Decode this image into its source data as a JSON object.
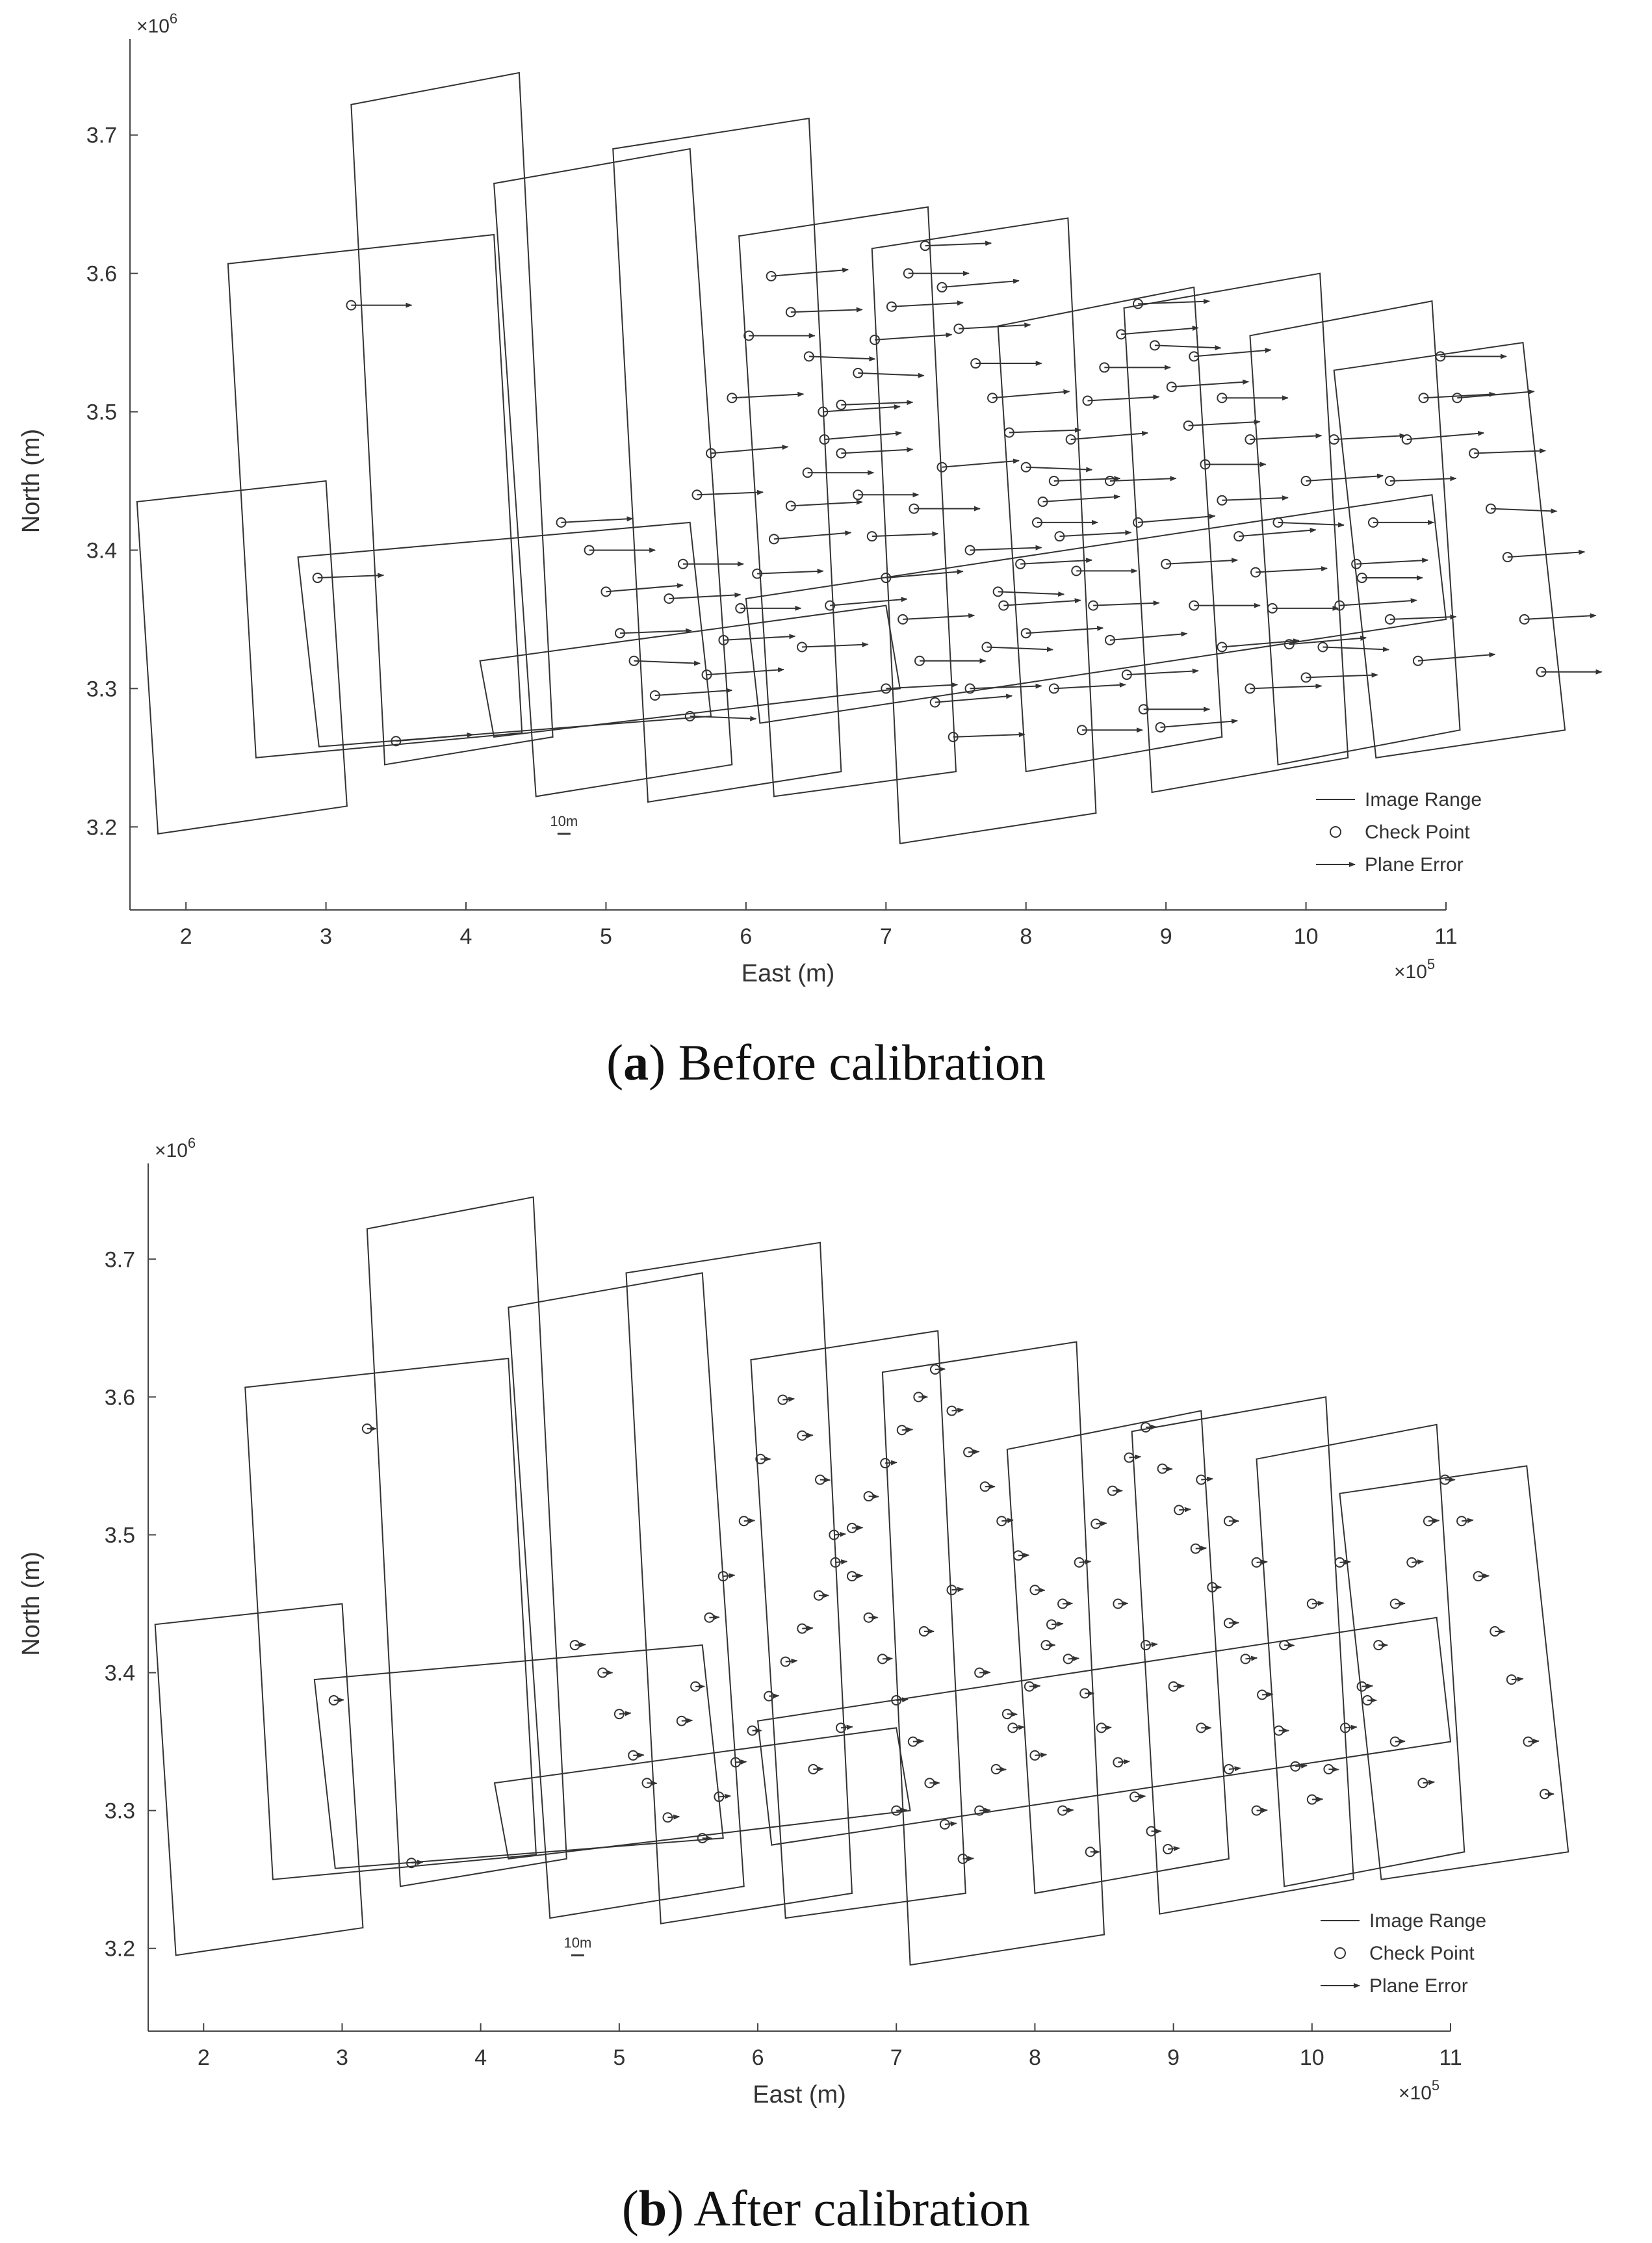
{
  "chart_data": [
    {
      "type": "scatter",
      "xlabel": "East (m)",
      "ylabel": "North (m)",
      "x_exponent_label": "×10",
      "x_exponent": "5",
      "y_exponent_label": "×10",
      "y_exponent": "6",
      "xlim": [
        160000,
        1100000
      ],
      "ylim": [
        3140000,
        3760000
      ],
      "xticks": [
        {
          "v": 200000,
          "label": "2"
        },
        {
          "v": 300000,
          "label": "3"
        },
        {
          "v": 400000,
          "label": "4"
        },
        {
          "v": 500000,
          "label": "5"
        },
        {
          "v": 600000,
          "label": "6"
        },
        {
          "v": 700000,
          "label": "7"
        },
        {
          "v": 800000,
          "label": "8"
        },
        {
          "v": 900000,
          "label": "9"
        },
        {
          "v": 1000000,
          "label": "10"
        },
        {
          "v": 1100000,
          "label": "11"
        }
      ],
      "yticks": [
        {
          "v": 3200000,
          "label": "3.2"
        },
        {
          "v": 3300000,
          "label": "3.3"
        },
        {
          "v": 3400000,
          "label": "3.4"
        },
        {
          "v": 3500000,
          "label": "3.5"
        },
        {
          "v": 3600000,
          "label": "3.6"
        },
        {
          "v": 3700000,
          "label": "3.7"
        }
      ],
      "legend": {
        "position": "bottom-right",
        "entries": [
          "Image Range",
          "Check Point",
          "Plane Error"
        ]
      },
      "scale_label": "10m",
      "error_scale": 1.0,
      "caption_letter": "a",
      "caption_text": ") Before calibration",
      "caption_open": "("
    },
    {
      "type": "scatter",
      "xlabel": "East (m)",
      "ylabel": "North (m)",
      "x_exponent_label": "×10",
      "x_exponent": "5",
      "y_exponent_label": "×10",
      "y_exponent": "6",
      "xlim": [
        160000,
        1100000
      ],
      "ylim": [
        3140000,
        3760000
      ],
      "xticks": [
        {
          "v": 200000,
          "label": "2"
        },
        {
          "v": 300000,
          "label": "3"
        },
        {
          "v": 400000,
          "label": "4"
        },
        {
          "v": 500000,
          "label": "5"
        },
        {
          "v": 600000,
          "label": "6"
        },
        {
          "v": 700000,
          "label": "7"
        },
        {
          "v": 800000,
          "label": "8"
        },
        {
          "v": 900000,
          "label": "9"
        },
        {
          "v": 1000000,
          "label": "10"
        },
        {
          "v": 1100000,
          "label": "11"
        }
      ],
      "yticks": [
        {
          "v": 3200000,
          "label": "3.2"
        },
        {
          "v": 3300000,
          "label": "3.3"
        },
        {
          "v": 3400000,
          "label": "3.4"
        },
        {
          "v": 3500000,
          "label": "3.5"
        },
        {
          "v": 3600000,
          "label": "3.6"
        },
        {
          "v": 3700000,
          "label": "3.7"
        }
      ],
      "legend": {
        "position": "bottom-right",
        "entries": [
          "Image Range",
          "Check Point",
          "Plane Error"
        ]
      },
      "scale_label": "10m",
      "error_scale": 0.15,
      "caption_letter": "b",
      "caption_text": ") After calibration",
      "caption_open": "("
    }
  ],
  "image_ranges": [
    {
      "corners": [
        [
          318000,
          3722000
        ],
        [
          438000,
          3745000
        ],
        [
          462000,
          3265000
        ],
        [
          342000,
          3245000
        ]
      ]
    },
    {
      "corners": [
        [
          230000,
          3607000
        ],
        [
          420000,
          3628000
        ],
        [
          440000,
          3268000
        ],
        [
          250000,
          3250000
        ]
      ]
    },
    {
      "corners": [
        [
          165000,
          3435000
        ],
        [
          300000,
          3450000
        ],
        [
          315000,
          3215000
        ],
        [
          180000,
          3195000
        ]
      ]
    },
    {
      "corners": [
        [
          280000,
          3395000
        ],
        [
          560000,
          3420000
        ],
        [
          575000,
          3280000
        ],
        [
          295000,
          3258000
        ]
      ]
    },
    {
      "corners": [
        [
          420000,
          3665000
        ],
        [
          560000,
          3690000
        ],
        [
          590000,
          3245000
        ],
        [
          450000,
          3222000
        ]
      ]
    },
    {
      "corners": [
        [
          505000,
          3690000
        ],
        [
          645000,
          3712000
        ],
        [
          668000,
          3240000
        ],
        [
          530000,
          3218000
        ]
      ]
    },
    {
      "corners": [
        [
          595000,
          3627000
        ],
        [
          730000,
          3648000
        ],
        [
          750000,
          3240000
        ],
        [
          620000,
          3222000
        ]
      ]
    },
    {
      "corners": [
        [
          690000,
          3618000
        ],
        [
          830000,
          3640000
        ],
        [
          850000,
          3210000
        ],
        [
          710000,
          3188000
        ]
      ]
    },
    {
      "corners": [
        [
          780000,
          3562000
        ],
        [
          920000,
          3590000
        ],
        [
          940000,
          3265000
        ],
        [
          800000,
          3240000
        ]
      ]
    },
    {
      "corners": [
        [
          870000,
          3575000
        ],
        [
          1010000,
          3600000
        ],
        [
          1030000,
          3250000
        ],
        [
          890000,
          3225000
        ]
      ]
    },
    {
      "corners": [
        [
          960000,
          3555000
        ],
        [
          1090000,
          3580000
        ],
        [
          1110000,
          3270000
        ],
        [
          980000,
          3245000
        ]
      ]
    },
    {
      "corners": [
        [
          1020000,
          3530000
        ],
        [
          1155000,
          3550000
        ],
        [
          1185000,
          3270000
        ],
        [
          1050000,
          3250000
        ]
      ]
    },
    {
      "corners": [
        [
          410000,
          3320000
        ],
        [
          700000,
          3360000
        ],
        [
          710000,
          3300000
        ],
        [
          420000,
          3265000
        ]
      ]
    },
    {
      "corners": [
        [
          600000,
          3365000
        ],
        [
          1090000,
          3440000
        ],
        [
          1100000,
          3350000
        ],
        [
          610000,
          3275000
        ]
      ]
    }
  ],
  "check_points": [
    [
      318000,
      3577000
    ],
    [
      294000,
      3380000
    ],
    [
      350000,
      3262000
    ],
    [
      468000,
      3420000
    ],
    [
      488000,
      3400000
    ],
    [
      500000,
      3370000
    ],
    [
      510000,
      3340000
    ],
    [
      520000,
      3320000
    ],
    [
      535000,
      3295000
    ],
    [
      545000,
      3365000
    ],
    [
      555000,
      3390000
    ],
    [
      565000,
      3440000
    ],
    [
      575000,
      3470000
    ],
    [
      590000,
      3510000
    ],
    [
      602000,
      3555000
    ],
    [
      618000,
      3598000
    ],
    [
      632000,
      3572000
    ],
    [
      645000,
      3540000
    ],
    [
      655000,
      3500000
    ],
    [
      668000,
      3470000
    ],
    [
      680000,
      3440000
    ],
    [
      690000,
      3410000
    ],
    [
      700000,
      3380000
    ],
    [
      712000,
      3350000
    ],
    [
      724000,
      3320000
    ],
    [
      735000,
      3290000
    ],
    [
      748000,
      3265000
    ],
    [
      560000,
      3280000
    ],
    [
      572000,
      3310000
    ],
    [
      584000,
      3335000
    ],
    [
      596000,
      3358000
    ],
    [
      608000,
      3383000
    ],
    [
      620000,
      3408000
    ],
    [
      632000,
      3432000
    ],
    [
      644000,
      3456000
    ],
    [
      656000,
      3480000
    ],
    [
      668000,
      3505000
    ],
    [
      680000,
      3528000
    ],
    [
      692000,
      3552000
    ],
    [
      704000,
      3576000
    ],
    [
      716000,
      3600000
    ],
    [
      728000,
      3620000
    ],
    [
      740000,
      3590000
    ],
    [
      752000,
      3560000
    ],
    [
      764000,
      3535000
    ],
    [
      776000,
      3510000
    ],
    [
      788000,
      3485000
    ],
    [
      800000,
      3460000
    ],
    [
      812000,
      3435000
    ],
    [
      824000,
      3410000
    ],
    [
      836000,
      3385000
    ],
    [
      848000,
      3360000
    ],
    [
      860000,
      3335000
    ],
    [
      872000,
      3310000
    ],
    [
      884000,
      3285000
    ],
    [
      896000,
      3272000
    ],
    [
      760000,
      3300000
    ],
    [
      772000,
      3330000
    ],
    [
      784000,
      3360000
    ],
    [
      796000,
      3390000
    ],
    [
      808000,
      3420000
    ],
    [
      820000,
      3450000
    ],
    [
      832000,
      3480000
    ],
    [
      844000,
      3508000
    ],
    [
      856000,
      3532000
    ],
    [
      868000,
      3556000
    ],
    [
      880000,
      3578000
    ],
    [
      892000,
      3548000
    ],
    [
      904000,
      3518000
    ],
    [
      916000,
      3490000
    ],
    [
      928000,
      3462000
    ],
    [
      940000,
      3436000
    ],
    [
      952000,
      3410000
    ],
    [
      964000,
      3384000
    ],
    [
      976000,
      3358000
    ],
    [
      988000,
      3332000
    ],
    [
      1000000,
      3308000
    ],
    [
      1012000,
      3330000
    ],
    [
      1024000,
      3360000
    ],
    [
      1036000,
      3390000
    ],
    [
      1048000,
      3420000
    ],
    [
      1060000,
      3450000
    ],
    [
      1072000,
      3480000
    ],
    [
      1084000,
      3510000
    ],
    [
      1096000,
      3540000
    ],
    [
      1108000,
      3510000
    ],
    [
      1120000,
      3470000
    ],
    [
      1132000,
      3430000
    ],
    [
      1144000,
      3395000
    ],
    [
      1156000,
      3350000
    ],
    [
      1168000,
      3312000
    ],
    [
      640000,
      3330000
    ],
    [
      660000,
      3360000
    ],
    [
      700000,
      3300000
    ],
    [
      720000,
      3430000
    ],
    [
      740000,
      3460000
    ],
    [
      760000,
      3400000
    ],
    [
      780000,
      3370000
    ],
    [
      800000,
      3340000
    ],
    [
      820000,
      3300000
    ],
    [
      840000,
      3270000
    ],
    [
      860000,
      3450000
    ],
    [
      880000,
      3420000
    ],
    [
      900000,
      3390000
    ],
    [
      920000,
      3360000
    ],
    [
      940000,
      3330000
    ],
    [
      960000,
      3300000
    ],
    [
      980000,
      3420000
    ],
    [
      1000000,
      3450000
    ],
    [
      1020000,
      3480000
    ],
    [
      1040000,
      3380000
    ],
    [
      1060000,
      3350000
    ],
    [
      1080000,
      3320000
    ],
    [
      960000,
      3480000
    ],
    [
      940000,
      3510000
    ],
    [
      920000,
      3540000
    ]
  ],
  "plane_errors": [
    [
      0.55,
      0.0
    ],
    [
      0.6,
      0.02
    ],
    [
      0.7,
      0.05
    ],
    [
      0.65,
      0.03
    ],
    [
      0.6,
      0.0
    ],
    [
      0.7,
      0.05
    ],
    [
      0.65,
      0.02
    ],
    [
      0.6,
      -0.02
    ],
    [
      0.7,
      0.04
    ],
    [
      0.65,
      0.03
    ]
  ]
}
